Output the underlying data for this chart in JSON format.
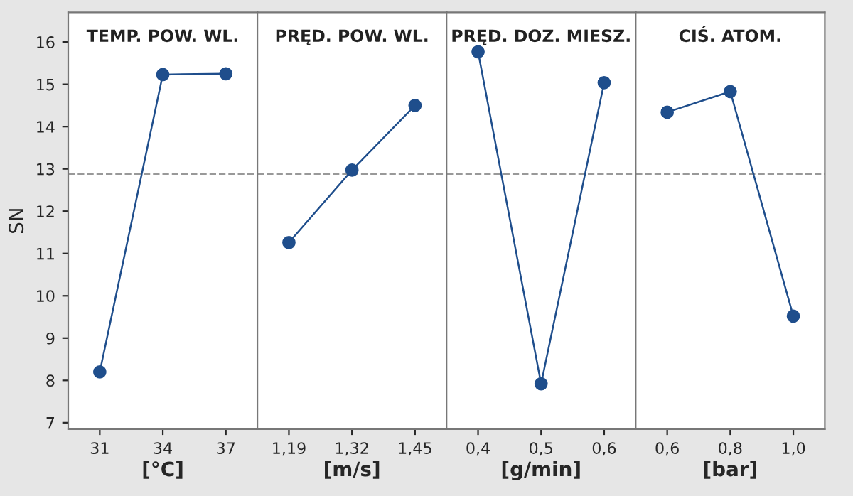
{
  "chart_data": [
    {
      "type": "line",
      "title": "TEMP. POW. WL.",
      "xlabel": "[°C]",
      "ylabel": "SN",
      "categories": [
        "31",
        "34",
        "37"
      ],
      "series": [
        {
          "color": "#1f4e8c",
          "values": [
            8.2,
            15.23,
            15.25
          ]
        }
      ],
      "ylim": [
        6.85,
        16.7
      ],
      "yticks": [
        7,
        8,
        9,
        10,
        11,
        12,
        13,
        14,
        15,
        16
      ],
      "ref_lines": [
        {
          "axis": "y",
          "value": 12.88,
          "color": "#999999",
          "line_style": "dashed"
        }
      ],
      "marker": "circle",
      "grid": false,
      "legend": false
    },
    {
      "type": "line",
      "title": "PRĘD. POW. WL.",
      "xlabel": "[m/s]",
      "categories": [
        "1,19",
        "1,32",
        "1,45"
      ],
      "series": [
        {
          "color": "#1f4e8c",
          "values": [
            11.26,
            12.97,
            14.5
          ]
        }
      ],
      "ylim": [
        6.85,
        16.7
      ],
      "yticks": [
        7,
        8,
        9,
        10,
        11,
        12,
        13,
        14,
        15,
        16
      ],
      "tick_labels": "x",
      "ref_lines": [
        {
          "axis": "y",
          "value": 12.88,
          "color": "#999999",
          "line_style": "dashed"
        }
      ],
      "marker": "circle",
      "grid": false,
      "legend": false
    },
    {
      "type": "line",
      "title": "PRĘD. DOZ. MIESZ.",
      "xlabel": "[g/min]",
      "categories": [
        "0,4",
        "0,5",
        "0,6"
      ],
      "series": [
        {
          "color": "#1f4e8c",
          "values": [
            15.77,
            7.92,
            15.04
          ]
        }
      ],
      "ylim": [
        6.85,
        16.7
      ],
      "yticks": [
        7,
        8,
        9,
        10,
        11,
        12,
        13,
        14,
        15,
        16
      ],
      "tick_labels": "x",
      "ref_lines": [
        {
          "axis": "y",
          "value": 12.88,
          "color": "#999999",
          "line_style": "dashed"
        }
      ],
      "marker": "circle",
      "grid": false,
      "legend": false
    },
    {
      "type": "line",
      "title": "CIŚ. ATOM.",
      "xlabel": "[bar]",
      "categories": [
        "0,6",
        "0,8",
        "1,0"
      ],
      "series": [
        {
          "color": "#1f4e8c",
          "values": [
            14.34,
            14.83,
            9.52
          ]
        }
      ],
      "ylim": [
        6.85,
        16.7
      ],
      "yticks": [
        7,
        8,
        9,
        10,
        11,
        12,
        13,
        14,
        15,
        16
      ],
      "tick_labels": "x",
      "ref_lines": [
        {
          "axis": "y",
          "value": 12.88,
          "color": "#999999",
          "line_style": "dashed"
        }
      ],
      "marker": "circle",
      "grid": false,
      "legend": false
    }
  ]
}
